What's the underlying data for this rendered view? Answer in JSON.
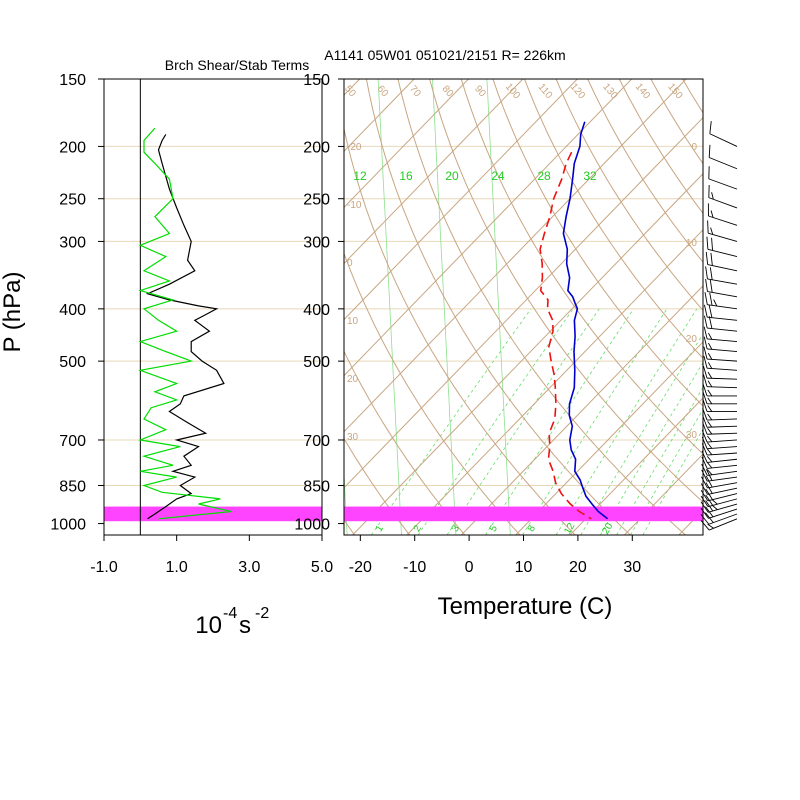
{
  "chart_data": [
    {
      "type": "line",
      "panel": "left",
      "title": "Brch Shear/Stab Terms",
      "xlabel": "10",
      "xlabel_exponent": "-4",
      "xlabel_unit": "s",
      "xlabel_unit_exponent": "-2",
      "ylabel": "P (hPa)",
      "xlim": [
        -1.0,
        5.0
      ],
      "x_ticks": [
        "-1.0",
        "1.0",
        "3.0",
        "5.0"
      ],
      "p_ticks": [
        "150",
        "200",
        "250",
        "300",
        "400",
        "500",
        "700",
        "850",
        "1000"
      ],
      "p_tick_values": [
        150,
        200,
        250,
        300,
        400,
        500,
        700,
        850,
        1000
      ],
      "zero_line": 0,
      "highlight_band_hpa": [
        930,
        990
      ],
      "series": [
        {
          "name": "Stab (black)",
          "color": "#000000",
          "p": [
            190,
            195,
            203,
            215,
            240,
            260,
            280,
            300,
            325,
            340,
            360,
            375,
            385,
            395,
            400,
            410,
            420,
            440,
            460,
            480,
            500,
            520,
            550,
            580,
            600,
            620,
            650,
            680,
            700,
            720,
            750,
            780,
            800,
            820,
            850,
            880,
            900,
            930,
            960,
            980
          ],
          "x": [
            0.7,
            0.6,
            0.5,
            0.6,
            0.8,
            1.0,
            1.2,
            1.4,
            1.3,
            1.5,
            0.8,
            0.2,
            0.8,
            1.6,
            2.1,
            1.8,
            1.5,
            1.9,
            1.4,
            1.4,
            1.7,
            2.1,
            2.3,
            1.2,
            1.1,
            0.8,
            1.3,
            1.8,
            1.0,
            1.6,
            1.2,
            1.4,
            0.9,
            1.5,
            1.1,
            1.4,
            1.0,
            0.7,
            0.4,
            0.2
          ]
        },
        {
          "name": "Shear (green)",
          "color": "#00dd00",
          "p": [
            185,
            195,
            205,
            215,
            230,
            250,
            270,
            290,
            305,
            320,
            340,
            355,
            370,
            385,
            400,
            420,
            440,
            460,
            480,
            500,
            520,
            550,
            570,
            590,
            610,
            640,
            670,
            700,
            720,
            750,
            780,
            800,
            820,
            850,
            875,
            900,
            920,
            950,
            980
          ],
          "x": [
            0.4,
            0.1,
            0.1,
            0.4,
            0.8,
            0.9,
            0.4,
            0.8,
            0.0,
            0.7,
            0.1,
            0.8,
            0.0,
            0.9,
            0.1,
            0.5,
            1.0,
            0.0,
            0.7,
            1.4,
            0.0,
            1.0,
            0.4,
            1.0,
            0.3,
            0.1,
            0.7,
            0.0,
            1.1,
            0.1,
            0.9,
            0.0,
            1.0,
            0.1,
            0.6,
            2.2,
            1.6,
            2.5,
            0.5
          ]
        }
      ]
    },
    {
      "type": "line",
      "panel": "right",
      "diagram": "skew-T",
      "title": "A1141 05W01 051021/2151 R= 226km",
      "xlabel": "Temperature (C)",
      "xlim": [
        -23,
        43
      ],
      "x_ticks": [
        "-20",
        "-10",
        "0",
        "10",
        "20",
        "30"
      ],
      "p_ticks": [
        "150",
        "200",
        "250",
        "300",
        "400",
        "500",
        "700",
        "850",
        "1000"
      ],
      "p_tick_values": [
        150,
        200,
        250,
        300,
        400,
        500,
        700,
        850,
        1000
      ],
      "isotherm_labels": [
        "-20",
        "-10",
        "0",
        "10",
        "20",
        "30"
      ],
      "theta_labels": [
        "50",
        "60",
        "70",
        "80",
        "90",
        "100",
        "110",
        "120",
        "130",
        "140",
        "150"
      ],
      "mixing_ratio_labels_top": [
        "12",
        "16",
        "20",
        "24",
        "28",
        "32"
      ],
      "mixing_ratio_labels_bottom": [
        "1",
        "2",
        "3",
        "5",
        "8",
        "12",
        "20"
      ],
      "theta_dry_k": [
        220,
        230,
        240,
        250,
        260,
        270,
        280,
        290,
        300,
        310,
        320,
        330,
        340,
        350,
        360,
        370,
        380,
        390,
        400,
        410,
        420,
        430,
        440,
        450,
        460,
        470,
        480,
        490,
        500
      ],
      "theta_e_k": [
        300,
        310,
        320,
        330,
        340,
        350,
        360,
        370,
        380
      ],
      "mixing_ratio_gkg": [
        1,
        2,
        3,
        5,
        8,
        12,
        16,
        20,
        24,
        28,
        32
      ],
      "highlight_band_hpa": [
        930,
        990
      ],
      "series": [
        {
          "name": "Temperature",
          "color": "#0000cc",
          "style": "solid",
          "p": [
            180,
            190,
            200,
            215,
            230,
            250,
            270,
            290,
            310,
            330,
            350,
            370,
            380,
            390,
            400,
            420,
            450,
            480,
            520,
            560,
            600,
            630,
            660,
            700,
            730,
            760,
            800,
            830,
            860,
            890,
            920,
            950,
            980
          ],
          "t": [
            -51,
            -49.5,
            -47.5,
            -45.5,
            -43,
            -40,
            -37.5,
            -35,
            -31.5,
            -29,
            -26,
            -24,
            -22,
            -20.5,
            -19,
            -17.5,
            -14.5,
            -12,
            -8.5,
            -5.5,
            -3.5,
            -1.5,
            1,
            3,
            5,
            7.5,
            9.5,
            12,
            14,
            16,
            18.5,
            21,
            24
          ]
        },
        {
          "name": "Dewpoint",
          "color": "#ee1111",
          "style": "dashed",
          "p": [
            205,
            215,
            230,
            250,
            270,
            290,
            310,
            330,
            350,
            370,
            385,
            400,
            420,
            440,
            470,
            500,
            530,
            560,
            600,
            640,
            680,
            720,
            760,
            800,
            840,
            880,
            920,
            950,
            980
          ],
          "t": [
            -48,
            -47,
            -45,
            -43,
            -40.5,
            -38.5,
            -36.5,
            -33.5,
            -31,
            -29,
            -26,
            -24.5,
            -21.5,
            -19.5,
            -17.5,
            -14.5,
            -11.5,
            -9,
            -6,
            -3.5,
            -2,
            0.5,
            2.5,
            5.5,
            8,
            11,
            14.5,
            17.5,
            21
          ]
        }
      ]
    },
    {
      "type": "wind_barbs",
      "panel": "far-right",
      "p": [
        200,
        220,
        240,
        260,
        280,
        300,
        320,
        340,
        360,
        380,
        400,
        420,
        440,
        460,
        480,
        500,
        520,
        540,
        560,
        580,
        600,
        620,
        640,
        660,
        680,
        700,
        720,
        740,
        760,
        780,
        800,
        820,
        840,
        860,
        880,
        900,
        920,
        940,
        960,
        980
      ],
      "direction_deg": [
        295,
        292,
        290,
        290,
        288,
        286,
        284,
        282,
        280,
        280,
        278,
        276,
        276,
        275,
        275,
        274,
        274,
        272,
        272,
        270,
        270,
        270,
        268,
        268,
        268,
        266,
        266,
        266,
        264,
        264,
        262,
        262,
        260,
        258,
        256,
        255,
        254,
        252,
        250,
        248
      ],
      "speed_kt": [
        10,
        10,
        10,
        15,
        15,
        15,
        20,
        20,
        20,
        20,
        25,
        20,
        20,
        15,
        15,
        15,
        15,
        15,
        15,
        15,
        15,
        15,
        15,
        15,
        15,
        15,
        15,
        15,
        15,
        15,
        15,
        20,
        20,
        20,
        20,
        25,
        25,
        20,
        20,
        15
      ]
    }
  ]
}
